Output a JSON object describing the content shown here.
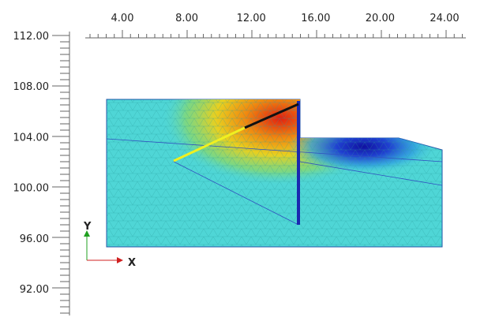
{
  "ruler_top": {
    "labels": [
      "4.00",
      "8.00",
      "12.00",
      "16.00",
      "20.00",
      "24.00"
    ]
  },
  "ruler_left": {
    "labels": [
      "112.00",
      "108.00",
      "104.00",
      "100.00",
      "96.00",
      "92.00"
    ]
  },
  "axes": {
    "y": "Y",
    "x": "X"
  }
}
